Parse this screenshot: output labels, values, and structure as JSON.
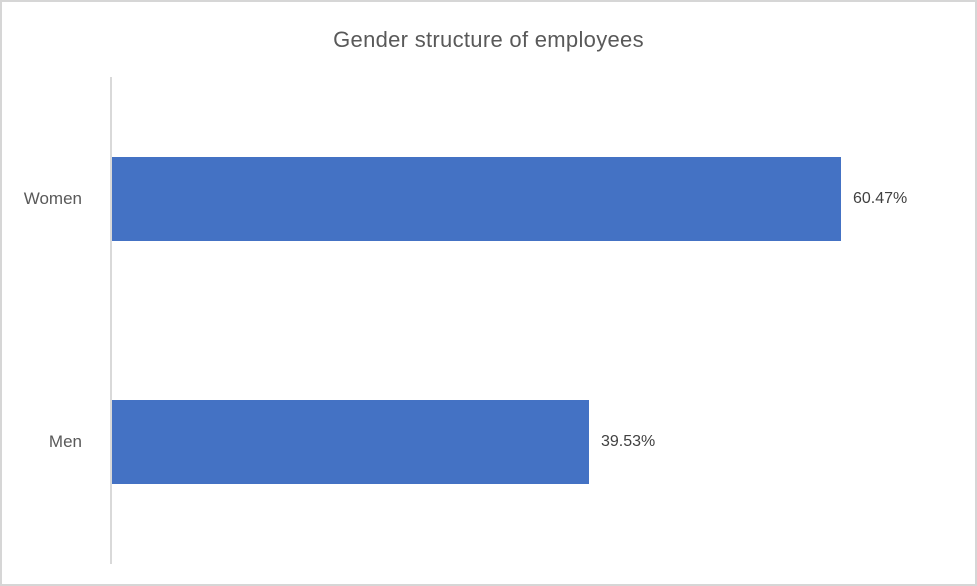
{
  "chart_data": {
    "type": "bar",
    "orientation": "horizontal",
    "title": "Gender structure of employees",
    "categories": [
      "Women",
      "Men"
    ],
    "values": [
      60.47,
      39.53
    ],
    "data_labels": [
      "60.47%",
      "39.53%"
    ],
    "xlabel": "",
    "ylabel": "",
    "xlim": [
      0,
      70
    ],
    "grid": false,
    "legend": false,
    "bar_color": "#4472C4",
    "title_color": "#595959",
    "category_label_color": "#595959",
    "data_label_color": "#404040",
    "axis_line_color": "#D9D9D9",
    "frame_color": "#D6D6D6"
  }
}
